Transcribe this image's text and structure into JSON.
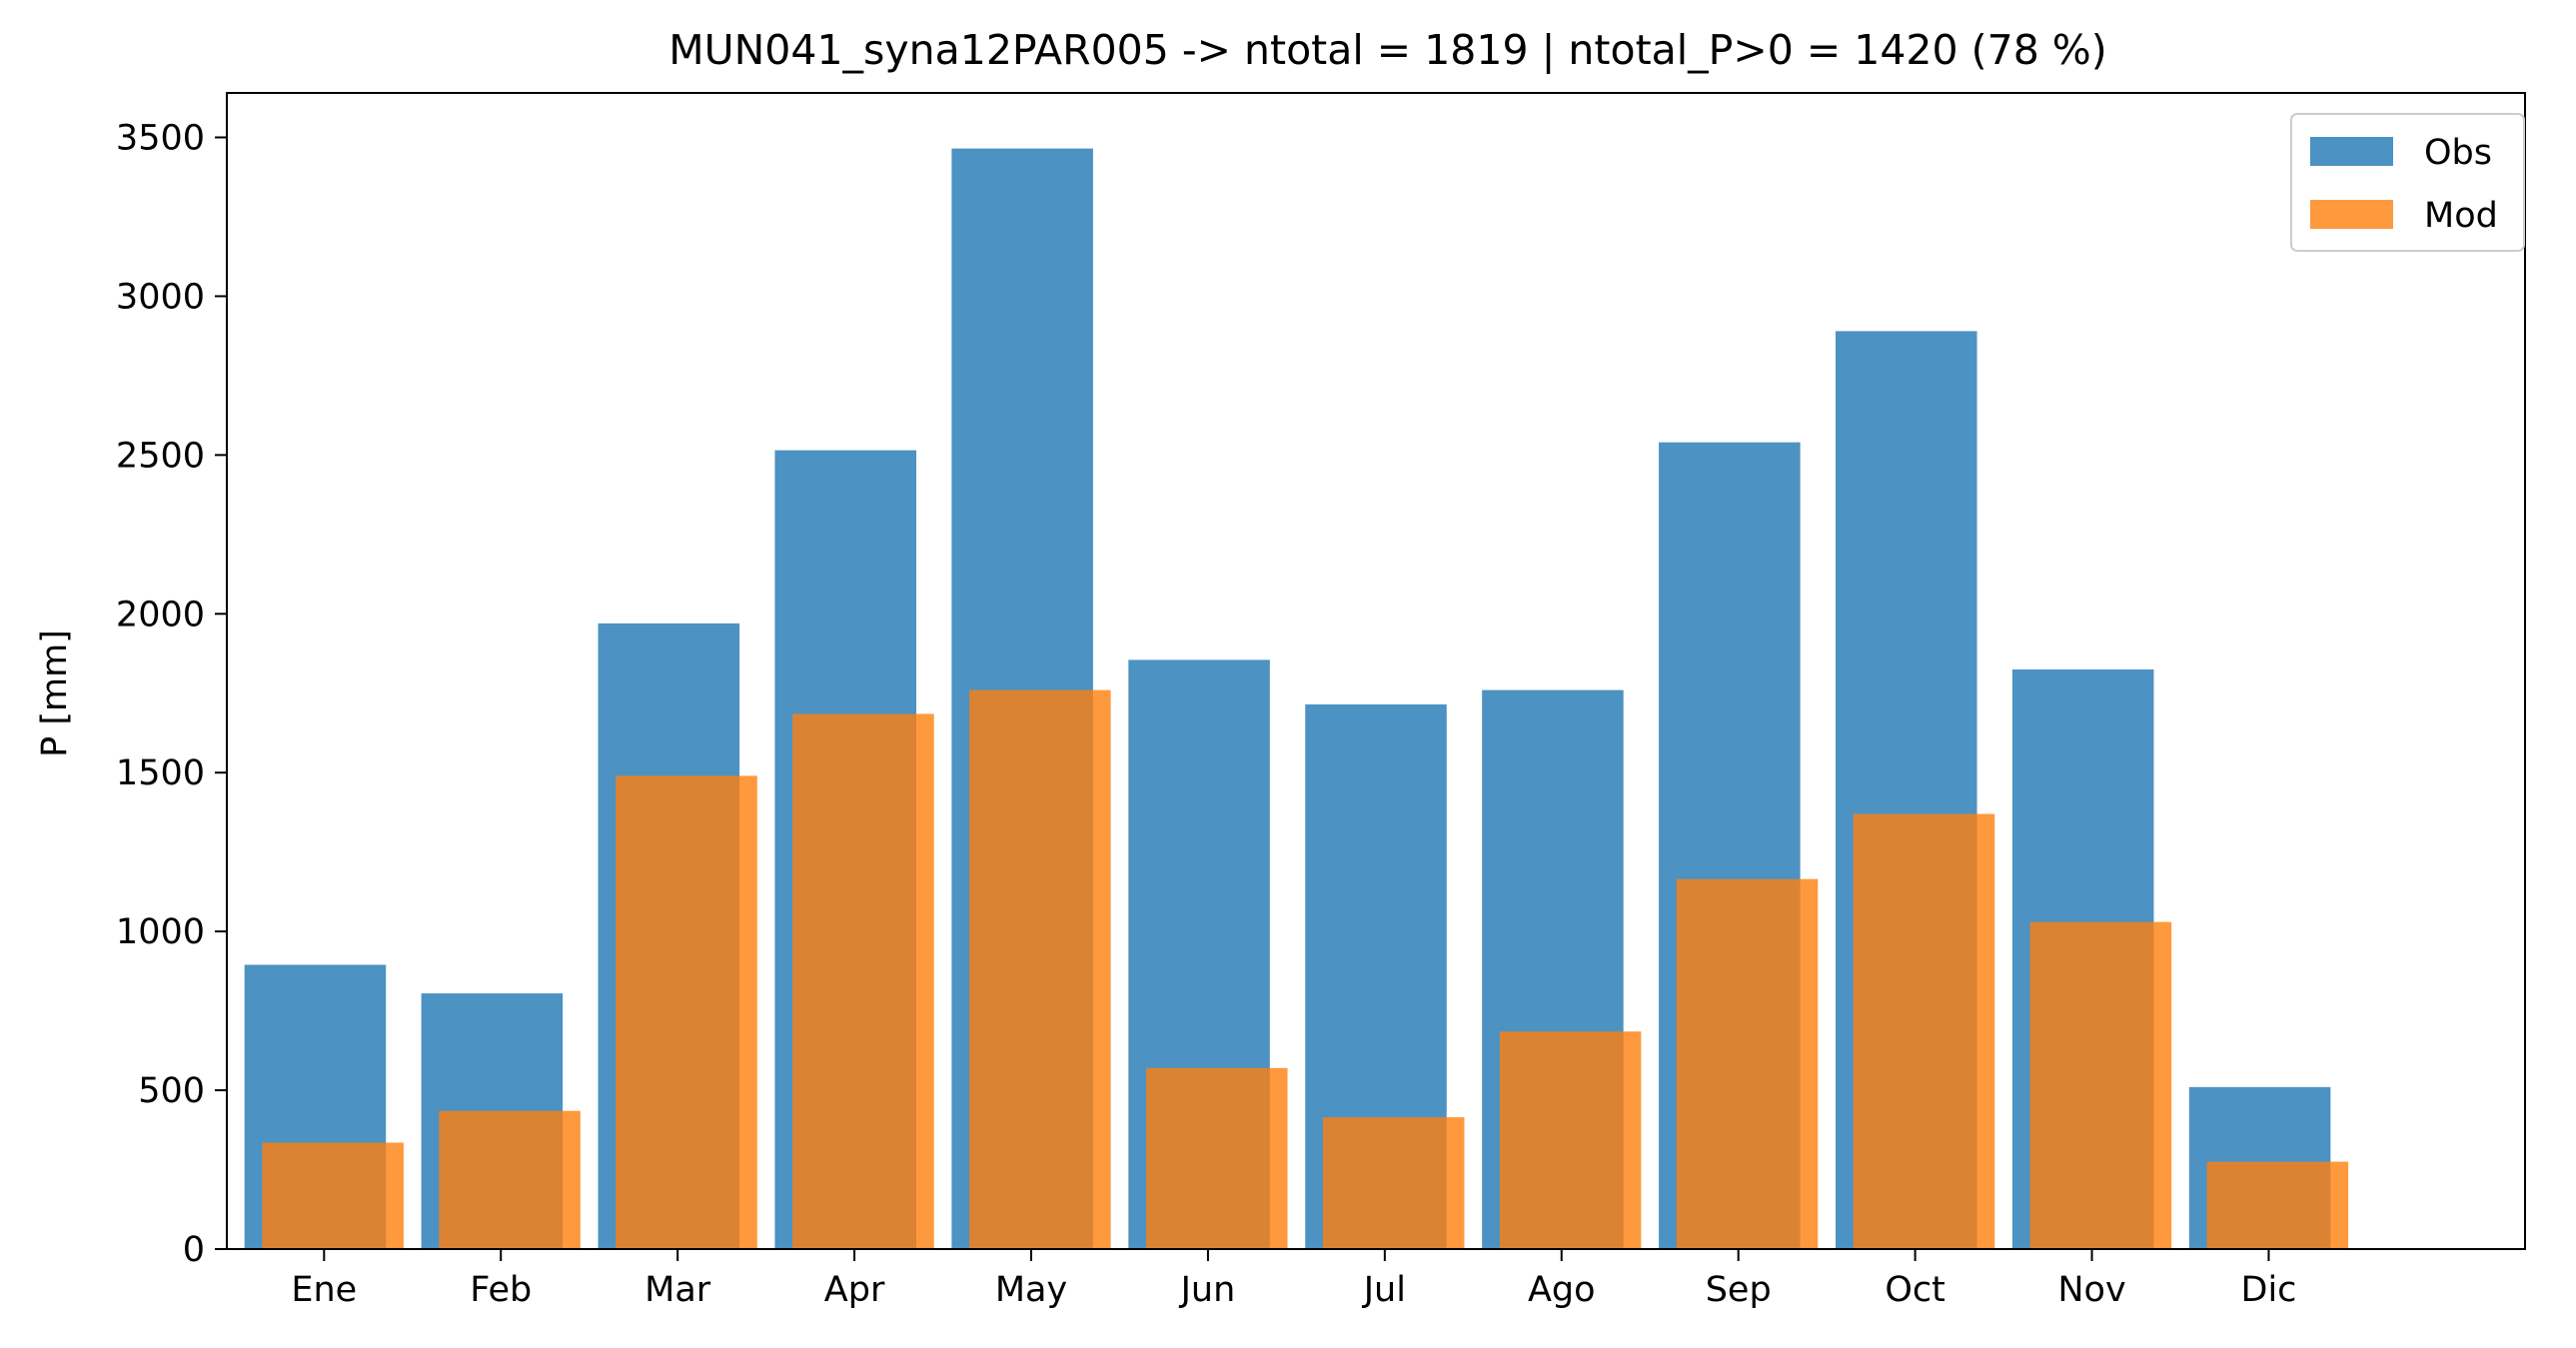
{
  "chart_data": {
    "type": "bar",
    "title": "MUN041_syna12PAR005 -> ntotal = 1819 | ntotal_P>0 = 1420 (78 %)",
    "xlabel": "",
    "ylabel": "P [mm]",
    "categories": [
      "Ene",
      "Feb",
      "Mar",
      "Apr",
      "May",
      "Jun",
      "Jul",
      "Ago",
      "Sep",
      "Oct",
      "Nov",
      "Dic"
    ],
    "series": [
      {
        "name": "Obs",
        "color": "#1f77b4",
        "opacity": 0.8,
        "values": [
          895,
          805,
          1970,
          2515,
          3465,
          1855,
          1715,
          1760,
          2540,
          2890,
          1825,
          510
        ]
      },
      {
        "name": "Mod",
        "color": "#ff7f0e",
        "opacity": 0.8,
        "values": [
          335,
          435,
          1490,
          1685,
          1760,
          570,
          415,
          685,
          1165,
          1370,
          1030,
          275
        ]
      }
    ],
    "ylim": [
      0,
      3640
    ],
    "yticks": [
      0,
      500,
      1000,
      1500,
      2000,
      2500,
      3000,
      3500
    ],
    "grid": false,
    "legend_position": "top-right"
  }
}
